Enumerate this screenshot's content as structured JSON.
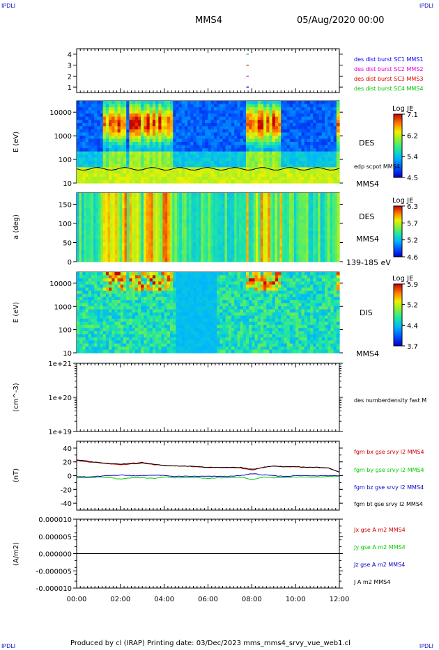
{
  "corner_tl": "IPDLI",
  "corner_tr": "IPDLI",
  "corner_bl": "IPDLI",
  "corner_br": "IPDLI",
  "header": {
    "spacecraft": "MMS4",
    "date": "05/Aug/2020 00:00"
  },
  "footer": "Produced by cl (IRAP)   Printing date: 03/Dec/2023   mms_mms4_srvy_vue_web1.cl",
  "colors": {
    "mms1": "#0000ff",
    "mms2": "#e000e0",
    "mms3": "#e00000",
    "mms4": "#00c000",
    "black": "#000000",
    "bx": "#cc0000",
    "by": "#00cc00",
    "bz": "#0000cc"
  },
  "chart_data": [
    {
      "type": "line",
      "panel": "burst-availability",
      "ylim": [
        0.5,
        4.5
      ],
      "y_ticks": [
        "1",
        "2",
        "3",
        "4"
      ],
      "x_ticks": [
        "00:00",
        "02:00",
        "04:00",
        "06:00",
        "08:00",
        "10:00",
        "12:00"
      ],
      "xlim": [
        "00:00",
        "12:00"
      ],
      "series": [
        {
          "name": "des dist burst SC1 MMS1",
          "color": "#0000ff",
          "y": 1,
          "x": [
            "07:45",
            "07:52"
          ]
        },
        {
          "name": "des dist burst SC2 MMS2",
          "color": "#e000e0",
          "y": 2,
          "x": [
            "07:45",
            "07:52"
          ]
        },
        {
          "name": "des dist burst SC3 MMS3",
          "color": "#e00000",
          "y": 3,
          "x": [
            "07:45",
            "07:52"
          ]
        },
        {
          "name": "des dist burst SC4 MMS4",
          "color": "#00c000",
          "y": 4,
          "x": [
            "07:45",
            "07:52"
          ]
        }
      ]
    },
    {
      "type": "heatmap",
      "panel": "des-energy-spectrogram",
      "ylabel": "E (eV)",
      "yscale": "log",
      "ylim": [
        10,
        30000
      ],
      "y_ticks": [
        "10",
        "100",
        "1000",
        "10000"
      ],
      "instrument": "DES",
      "spacecraft": "MMS4",
      "overlay": "edp scpot MMS4",
      "colorbar": {
        "title": "Log JE",
        "ticks": [
          "7.1",
          "6.2",
          "5.4",
          "4.5"
        ],
        "range": [
          4.5,
          7.1
        ]
      }
    },
    {
      "type": "heatmap",
      "panel": "des-pitch-angle",
      "ylabel": "a (deg)",
      "ylim": [
        0,
        180
      ],
      "y_ticks": [
        "0",
        "50",
        "100",
        "150"
      ],
      "instrument": "DES",
      "spacecraft": "MMS4",
      "energy_range": "139-185 eV",
      "colorbar": {
        "title": "Log JE",
        "ticks": [
          "6.3",
          "5.7",
          "5.2",
          "4.6"
        ],
        "range": [
          4.6,
          6.3
        ]
      }
    },
    {
      "type": "heatmap",
      "panel": "dis-energy-spectrogram",
      "ylabel": "E (eV)",
      "yscale": "log",
      "ylim": [
        10,
        30000
      ],
      "y_ticks": [
        "10",
        "100",
        "1000",
        "10000"
      ],
      "instrument": "DIS",
      "spacecraft": "MMS4",
      "colorbar": {
        "title": "Log JE",
        "ticks": [
          "5.9",
          "5.2",
          "4.4",
          "3.7"
        ],
        "range": [
          3.7,
          5.9
        ]
      }
    },
    {
      "type": "line",
      "panel": "density",
      "ylabel": "(cm^-3)",
      "yscale": "log",
      "ylim": [
        1e+19,
        1e+21
      ],
      "y_ticks": [
        "1e+21",
        "1e+20",
        "1e+19"
      ],
      "series": [
        {
          "name": "des numberdensity fast M",
          "x": [],
          "y": []
        }
      ]
    },
    {
      "type": "line",
      "panel": "magnetic-field",
      "ylabel": "(nT)",
      "ylim": [
        -50,
        50
      ],
      "y_ticks": [
        "40",
        "20",
        "0",
        "-20",
        "-40"
      ],
      "x": [
        0,
        0.5,
        1,
        1.5,
        2,
        2.5,
        3,
        3.5,
        4,
        4.5,
        5,
        5.5,
        6,
        6.5,
        7,
        7.5,
        8,
        8.5,
        9,
        9.5,
        10,
        10.5,
        11,
        11.5,
        12
      ],
      "series": [
        {
          "name": "fgm bx gse srvy l2 MMS4",
          "color": "#cc0000",
          "values": [
            22,
            20,
            19,
            17,
            16,
            17,
            18,
            16,
            15,
            14,
            14,
            13,
            12,
            12,
            12,
            11,
            8,
            12,
            14,
            13,
            13,
            12,
            12,
            11,
            5
          ]
        },
        {
          "name": "fgm by gse srvy l2 MMS4",
          "color": "#00cc00",
          "values": [
            -3,
            -3,
            -2,
            -3,
            -5,
            -3,
            -3,
            -4,
            -2,
            -3,
            -3,
            -3,
            -4,
            -3,
            -3,
            -2,
            -6,
            -2,
            -3,
            -3,
            -2,
            -2,
            -2,
            -1,
            -1
          ]
        },
        {
          "name": "fgm bz gse srvy l2 MMS4",
          "color": "#0000cc",
          "values": [
            -1,
            -2,
            -1,
            0,
            1,
            0,
            0,
            1,
            0,
            -1,
            -1,
            -1,
            -1,
            -1,
            -1,
            0,
            3,
            1,
            0,
            -1,
            0,
            0,
            0,
            0,
            0
          ]
        },
        {
          "name": "fgm bt gse srvy l2 MMS4",
          "color": "#000000",
          "values": [
            23,
            21,
            19,
            18,
            17,
            18,
            19,
            17,
            15,
            14,
            14,
            13,
            12,
            12,
            12,
            12,
            9,
            12,
            14,
            13,
            13,
            12,
            12,
            11,
            5
          ]
        }
      ]
    },
    {
      "type": "line",
      "panel": "current-density",
      "ylabel": "(A/m2)",
      "ylim": [
        -1e-05,
        1e-05
      ],
      "y_ticks": [
        "0.000010",
        "0.000005",
        "0.000000",
        "-0.000005",
        "-0.000010"
      ],
      "x": [
        0,
        12
      ],
      "series": [
        {
          "name": "Jx gse A m2 MMS4",
          "color": "#cc0000",
          "values": [
            0,
            0
          ]
        },
        {
          "name": "Jy gse A m2 MMS4",
          "color": "#00cc00",
          "values": [
            0,
            0
          ]
        },
        {
          "name": "Jz gse A m2 MMS4",
          "color": "#0000cc",
          "values": [
            0,
            0
          ]
        },
        {
          "name": "J A m2 MMS4",
          "color": "#000000",
          "values": [
            0,
            0
          ]
        }
      ]
    }
  ]
}
